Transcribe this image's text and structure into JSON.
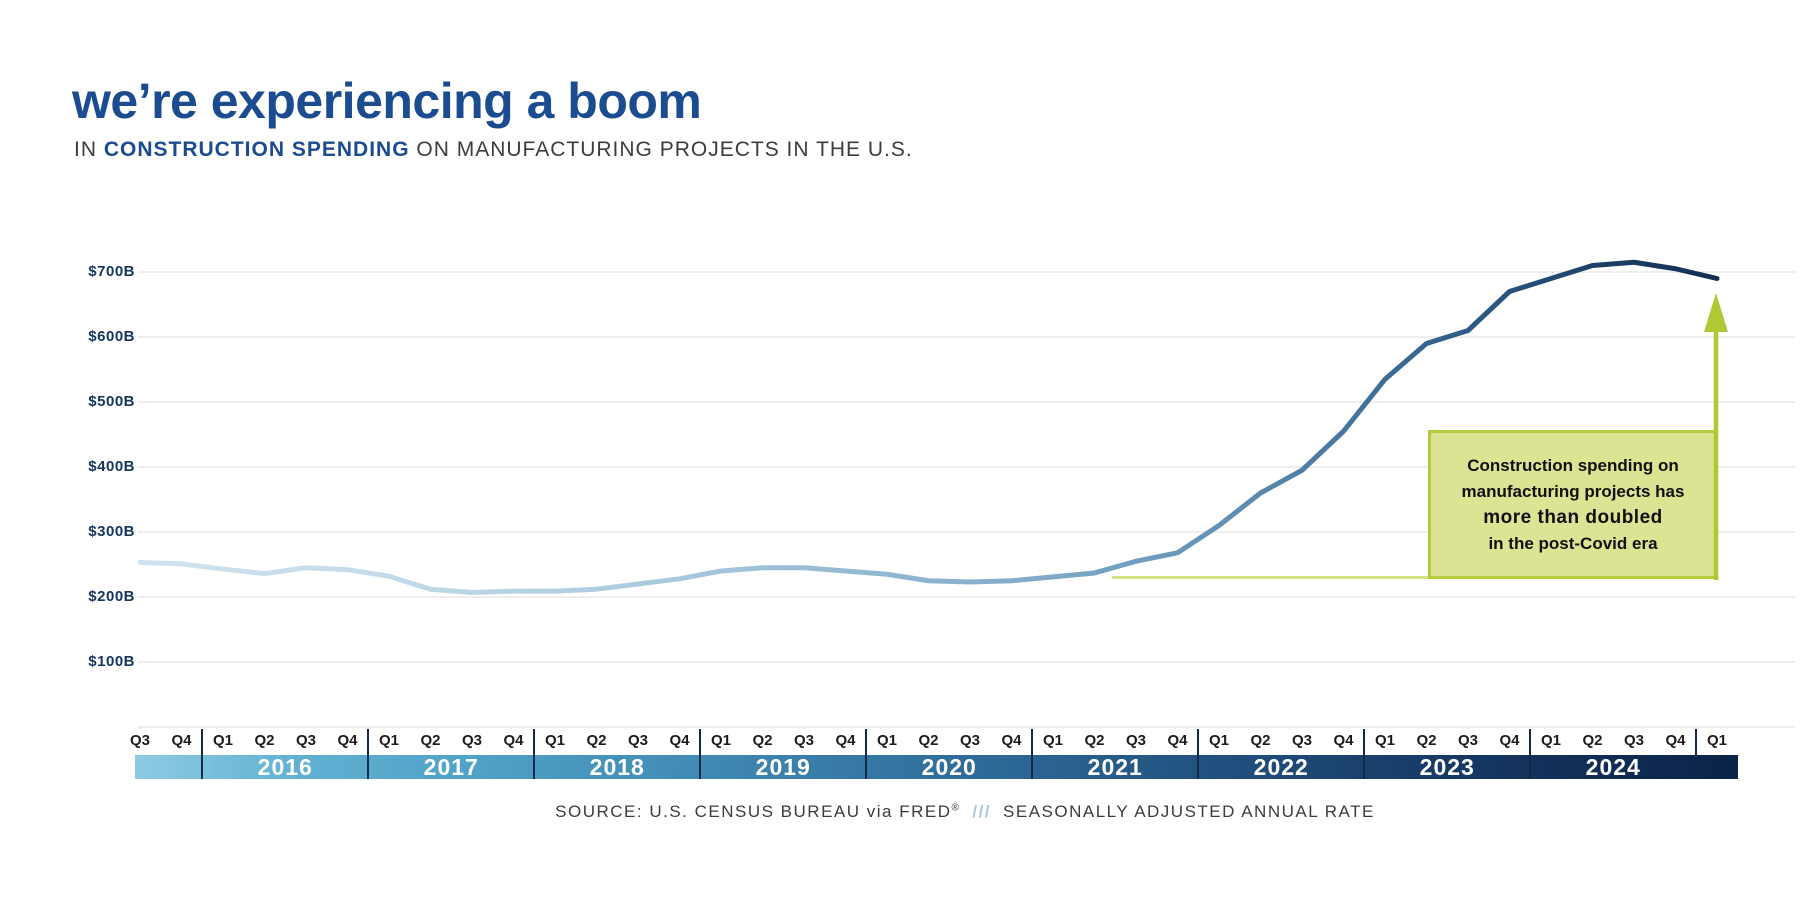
{
  "header": {
    "title": "we’re experiencing a boom",
    "subtitle_prefix": "IN ",
    "subtitle_bold": "CONSTRUCTION SPENDING",
    "subtitle_suffix": " ON MANUFACTURING PROJECTS IN THE U.S."
  },
  "chart_data": {
    "type": "line",
    "title": "Construction spending on manufacturing projects in the U.S.",
    "unit": "USD billions, seasonally adjusted annual rate",
    "x": [
      "2015 Q3",
      "2015 Q4",
      "2016 Q1",
      "2016 Q2",
      "2016 Q3",
      "2016 Q4",
      "2017 Q1",
      "2017 Q2",
      "2017 Q3",
      "2017 Q4",
      "2018 Q1",
      "2018 Q2",
      "2018 Q3",
      "2018 Q4",
      "2019 Q1",
      "2019 Q2",
      "2019 Q3",
      "2019 Q4",
      "2020 Q1",
      "2020 Q2",
      "2020 Q3",
      "2020 Q4",
      "2021 Q1",
      "2021 Q2",
      "2021 Q3",
      "2021 Q4",
      "2022 Q1",
      "2022 Q2",
      "2022 Q3",
      "2022 Q4",
      "2023 Q1",
      "2023 Q2",
      "2023 Q3",
      "2023 Q4",
      "2024 Q1",
      "2024 Q2",
      "2024 Q3",
      "2024 Q4",
      "2025 Q1"
    ],
    "values": [
      253,
      251,
      243,
      236,
      245,
      242,
      232,
      212,
      207,
      209,
      209,
      212,
      220,
      228,
      240,
      245,
      245,
      240,
      235,
      225,
      223,
      225,
      231,
      237,
      255,
      268,
      310,
      360,
      395,
      455,
      535,
      590,
      610,
      670,
      690,
      710,
      715,
      705,
      690
    ],
    "ylim": [
      0,
      750
    ],
    "y_ticks": [
      {
        "label": "$100B",
        "value": 100
      },
      {
        "label": "$200B",
        "value": 200
      },
      {
        "label": "$300B",
        "value": 300
      },
      {
        "label": "$400B",
        "value": 400
      },
      {
        "label": "$500B",
        "value": 500
      },
      {
        "label": "$600B",
        "value": 600
      },
      {
        "label": "$700B",
        "value": 700
      }
    ],
    "gridline_values": [
      0,
      100,
      200,
      300,
      400,
      500,
      600,
      700
    ],
    "grid": true,
    "legend": false,
    "baseline_value": 230
  },
  "annotation": {
    "line1": "Construction spending on",
    "line2": "manufacturing projects has",
    "line3": "more than doubled",
    "line4": "in the post-Covid era"
  },
  "footer": {
    "source": "SOURCE: U.S. CENSUS BUREAU via FRED",
    "source_reg": "®",
    "divider": "///",
    "note": "SEASONALLY ADJUSTED ANNUAL RATE"
  },
  "colors": {
    "brand_blue": "#1b4c8f",
    "navy_text": "#14355e",
    "body_text": "#3c3c3c",
    "gridline": "#e8e8e8",
    "quarter_text": "#1c1c1c",
    "separator": "#13294a",
    "chartreuse": "#aec934",
    "baseline_line": "#d6e183",
    "annotation_fill": "#dce393",
    "annotation_border": "#b5cc3f",
    "divider_blue": "#a5cbdd",
    "year_band_gradient": [
      "#8ecbe3",
      "#62b1d3",
      "#51a3c7",
      "#4693ba",
      "#3b82ac",
      "#316f9c",
      "#285d8b",
      "#204c7a",
      "#183c68",
      "#112e57",
      "#0c2348"
    ],
    "line_gradient": [
      [
        "0%",
        "#cfe3ee"
      ],
      [
        "15%",
        "#c3dbe9"
      ],
      [
        "30%",
        "#aecde0"
      ],
      [
        "45%",
        "#95bad3"
      ],
      [
        "58%",
        "#7ea9c7"
      ],
      [
        "68%",
        "#6493b6"
      ],
      [
        "76%",
        "#47779f"
      ],
      [
        "84%",
        "#2e5c87"
      ],
      [
        "92%",
        "#1c4268"
      ],
      [
        "100%",
        "#132e51"
      ]
    ]
  }
}
